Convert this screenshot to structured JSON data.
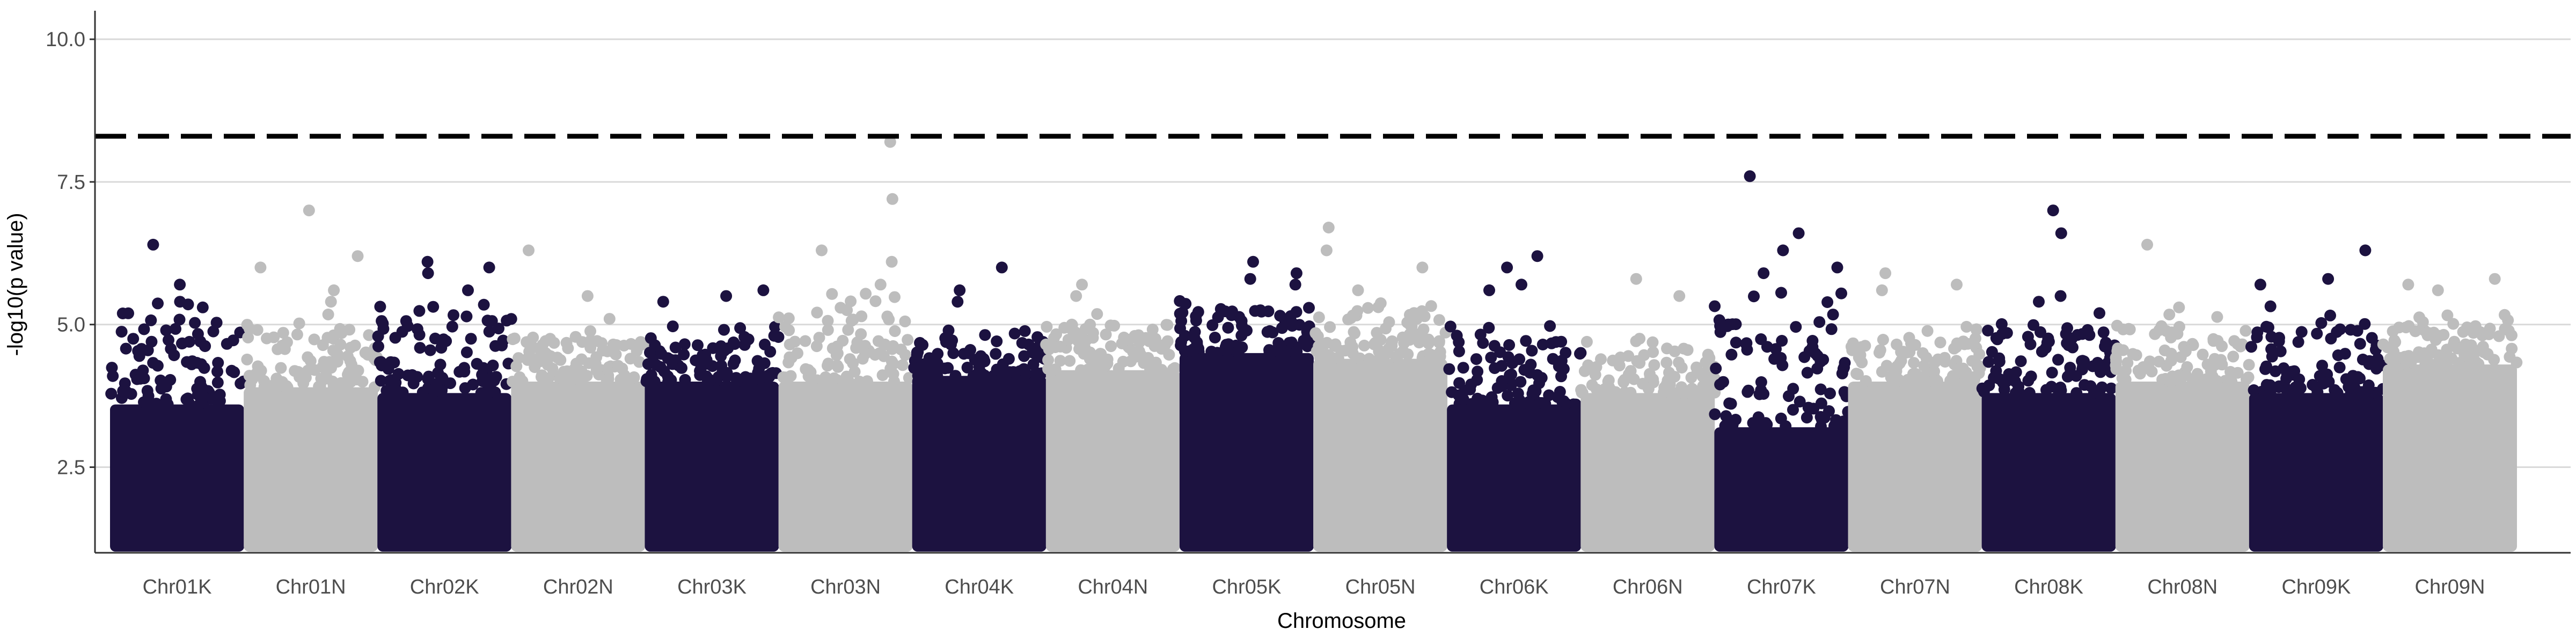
{
  "chart_data": {
    "type": "scatter",
    "subtype": "manhattan",
    "title": "",
    "xlabel": "Chromosome",
    "ylabel": "-log10(p value)",
    "ylim": [
      1.0,
      10.5
    ],
    "yticks": [
      2.5,
      5.0,
      7.5,
      10.0
    ],
    "ytick_labels": [
      "2.5",
      "5.0",
      "7.5",
      "10.0"
    ],
    "grid": "horizontal major gridlines",
    "legend": "none",
    "threshold": 8.3,
    "threshold_style": "dashed black line",
    "colors": {
      "odd": "#1c1240",
      "even": "#bdbdbd",
      "threshold": "#000000",
      "grid": "#d9d9d9",
      "axis": "#333333"
    },
    "chromosomes": [
      {
        "name": "Chr01K",
        "color": "#1c1240",
        "max": 6.4,
        "dense_top": 3.6,
        "scatter_top": 5.4,
        "notable": [
          6.4,
          5.7,
          5.3,
          5.4
        ]
      },
      {
        "name": "Chr01N",
        "color": "#bdbdbd",
        "max": 7.0,
        "dense_top": 3.9,
        "scatter_top": 5.2,
        "notable": [
          7.0,
          6.2,
          6.0,
          5.6,
          5.4
        ]
      },
      {
        "name": "Chr02K",
        "color": "#1c1240",
        "max": 6.1,
        "dense_top": 3.8,
        "scatter_top": 5.5,
        "notable": [
          6.1,
          6.0,
          5.9,
          5.6
        ]
      },
      {
        "name": "Chr02N",
        "color": "#bdbdbd",
        "max": 6.3,
        "dense_top": 4.0,
        "scatter_top": 5.0,
        "notable": [
          6.3,
          5.5,
          5.1
        ]
      },
      {
        "name": "Chr03K",
        "color": "#1c1240",
        "max": 5.6,
        "dense_top": 4.0,
        "scatter_top": 5.0,
        "notable": [
          5.6,
          5.5,
          5.4
        ]
      },
      {
        "name": "Chr03N",
        "color": "#bdbdbd",
        "max": 8.2,
        "dense_top": 4.0,
        "scatter_top": 5.6,
        "notable": [
          8.2,
          7.2,
          6.3,
          6.1,
          5.7
        ]
      },
      {
        "name": "Chr04K",
        "color": "#1c1240",
        "max": 6.0,
        "dense_top": 4.1,
        "scatter_top": 4.9,
        "notable": [
          6.0,
          5.6,
          5.4
        ]
      },
      {
        "name": "Chr04N",
        "color": "#bdbdbd",
        "max": 5.7,
        "dense_top": 4.2,
        "scatter_top": 5.2,
        "notable": [
          5.7,
          5.5
        ]
      },
      {
        "name": "Chr05K",
        "color": "#1c1240",
        "max": 6.1,
        "dense_top": 4.5,
        "scatter_top": 5.5,
        "notable": [
          6.1,
          5.9,
          5.8,
          5.7
        ]
      },
      {
        "name": "Chr05N",
        "color": "#bdbdbd",
        "max": 6.7,
        "dense_top": 4.4,
        "scatter_top": 5.4,
        "notable": [
          6.7,
          6.3,
          6.0,
          5.6
        ]
      },
      {
        "name": "Chr06K",
        "color": "#1c1240",
        "max": 6.2,
        "dense_top": 3.6,
        "scatter_top": 5.0,
        "notable": [
          6.2,
          6.0,
          5.7,
          5.6
        ]
      },
      {
        "name": "Chr06N",
        "color": "#bdbdbd",
        "max": 5.8,
        "dense_top": 3.8,
        "scatter_top": 4.8,
        "notable": [
          5.8,
          5.5
        ]
      },
      {
        "name": "Chr07K",
        "color": "#1c1240",
        "max": 7.6,
        "dense_top": 3.2,
        "scatter_top": 5.6,
        "notable": [
          7.6,
          6.6,
          6.3,
          6.0,
          5.9
        ]
      },
      {
        "name": "Chr07N",
        "color": "#bdbdbd",
        "max": 5.9,
        "dense_top": 4.0,
        "scatter_top": 5.0,
        "notable": [
          5.9,
          5.7,
          5.6
        ]
      },
      {
        "name": "Chr08K",
        "color": "#1c1240",
        "max": 7.0,
        "dense_top": 3.8,
        "scatter_top": 5.2,
        "notable": [
          7.0,
          6.6,
          5.5,
          5.4
        ]
      },
      {
        "name": "Chr08N",
        "color": "#bdbdbd",
        "max": 6.4,
        "dense_top": 4.0,
        "scatter_top": 5.2,
        "notable": [
          6.4,
          5.3
        ]
      },
      {
        "name": "Chr09K",
        "color": "#1c1240",
        "max": 6.3,
        "dense_top": 3.8,
        "scatter_top": 5.4,
        "notable": [
          6.3,
          5.8,
          5.7
        ]
      },
      {
        "name": "Chr09N",
        "color": "#bdbdbd",
        "max": 5.8,
        "dense_top": 4.3,
        "scatter_top": 5.2,
        "notable": [
          5.8,
          5.7,
          5.6
        ]
      }
    ]
  }
}
